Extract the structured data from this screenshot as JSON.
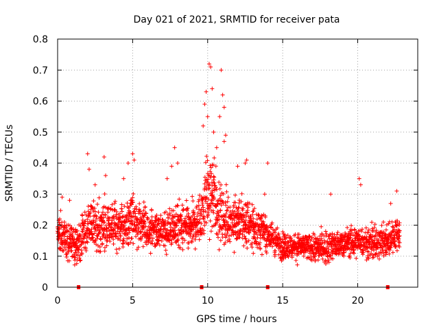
{
  "chart_data": {
    "type": "scatter",
    "title": "Day 021 of 2021, SRMTID for receiver pata",
    "xlabel": "GPS time / hours",
    "ylabel": "SRMTID / TECUs",
    "xlim": [
      0,
      24
    ],
    "ylim": [
      0,
      0.8
    ],
    "xticks": [
      0,
      5,
      10,
      15,
      20
    ],
    "xtick_labels": [
      "0",
      "5",
      "10",
      "15",
      "20"
    ],
    "yticks": [
      0,
      0.1,
      0.2,
      0.3,
      0.4,
      0.5,
      0.6,
      0.7,
      0.8
    ],
    "ytick_labels": [
      "0",
      "0.1",
      "0.2",
      "0.3",
      "0.4",
      "0.5",
      "0.6",
      "0.7",
      "0.8"
    ],
    "grid": true,
    "marker": "+",
    "color": "#ff0000",
    "data_gap_markers_x": [
      1.4,
      9.6,
      14.0,
      22.0
    ],
    "series": [
      {
        "name": "SRMTID",
        "profile": [
          {
            "x": 0.0,
            "mean": 0.18,
            "spread": 0.06
          },
          {
            "x": 0.5,
            "mean": 0.16,
            "spread": 0.06
          },
          {
            "x": 1.0,
            "mean": 0.14,
            "spread": 0.06
          },
          {
            "x": 1.5,
            "mean": 0.15,
            "spread": 0.06
          },
          {
            "x": 2.0,
            "mean": 0.2,
            "spread": 0.07
          },
          {
            "x": 3.0,
            "mean": 0.2,
            "spread": 0.07
          },
          {
            "x": 4.0,
            "mean": 0.19,
            "spread": 0.07
          },
          {
            "x": 5.0,
            "mean": 0.22,
            "spread": 0.08
          },
          {
            "x": 6.0,
            "mean": 0.19,
            "spread": 0.06
          },
          {
            "x": 7.0,
            "mean": 0.18,
            "spread": 0.06
          },
          {
            "x": 8.0,
            "mean": 0.2,
            "spread": 0.07
          },
          {
            "x": 9.0,
            "mean": 0.19,
            "spread": 0.07
          },
          {
            "x": 9.5,
            "mean": 0.22,
            "spread": 0.08
          },
          {
            "x": 10.0,
            "mean": 0.3,
            "spread": 0.12
          },
          {
            "x": 10.5,
            "mean": 0.28,
            "spread": 0.12
          },
          {
            "x": 11.0,
            "mean": 0.22,
            "spread": 0.08
          },
          {
            "x": 12.0,
            "mean": 0.21,
            "spread": 0.08
          },
          {
            "x": 13.0,
            "mean": 0.2,
            "spread": 0.07
          },
          {
            "x": 14.0,
            "mean": 0.17,
            "spread": 0.05
          },
          {
            "x": 15.0,
            "mean": 0.13,
            "spread": 0.04
          },
          {
            "x": 16.0,
            "mean": 0.13,
            "spread": 0.04
          },
          {
            "x": 17.0,
            "mean": 0.13,
            "spread": 0.04
          },
          {
            "x": 18.0,
            "mean": 0.13,
            "spread": 0.05
          },
          {
            "x": 19.0,
            "mean": 0.14,
            "spread": 0.04
          },
          {
            "x": 20.0,
            "mean": 0.15,
            "spread": 0.05
          },
          {
            "x": 21.0,
            "mean": 0.14,
            "spread": 0.05
          },
          {
            "x": 22.0,
            "mean": 0.15,
            "spread": 0.05
          },
          {
            "x": 22.8,
            "mean": 0.18,
            "spread": 0.06
          }
        ],
        "peaks": [
          {
            "x": 0.3,
            "y": 0.29
          },
          {
            "x": 0.8,
            "y": 0.28
          },
          {
            "x": 2.0,
            "y": 0.43
          },
          {
            "x": 2.1,
            "y": 0.38
          },
          {
            "x": 2.5,
            "y": 0.33
          },
          {
            "x": 3.1,
            "y": 0.42
          },
          {
            "x": 3.2,
            "y": 0.36
          },
          {
            "x": 4.4,
            "y": 0.35
          },
          {
            "x": 4.7,
            "y": 0.4
          },
          {
            "x": 5.0,
            "y": 0.43
          },
          {
            "x": 5.1,
            "y": 0.41
          },
          {
            "x": 7.3,
            "y": 0.35
          },
          {
            "x": 7.6,
            "y": 0.39
          },
          {
            "x": 7.8,
            "y": 0.45
          },
          {
            "x": 8.0,
            "y": 0.4
          },
          {
            "x": 9.7,
            "y": 0.52
          },
          {
            "x": 9.8,
            "y": 0.59
          },
          {
            "x": 9.9,
            "y": 0.63
          },
          {
            "x": 10.0,
            "y": 0.55
          },
          {
            "x": 10.1,
            "y": 0.72
          },
          {
            "x": 10.2,
            "y": 0.71
          },
          {
            "x": 10.3,
            "y": 0.64
          },
          {
            "x": 10.4,
            "y": 0.5
          },
          {
            "x": 10.6,
            "y": 0.45
          },
          {
            "x": 10.8,
            "y": 0.55
          },
          {
            "x": 10.9,
            "y": 0.7
          },
          {
            "x": 11.0,
            "y": 0.62
          },
          {
            "x": 11.1,
            "y": 0.58
          },
          {
            "x": 11.2,
            "y": 0.49
          },
          {
            "x": 11.1,
            "y": 0.47
          },
          {
            "x": 12.0,
            "y": 0.39
          },
          {
            "x": 12.5,
            "y": 0.4
          },
          {
            "x": 12.6,
            "y": 0.41
          },
          {
            "x": 14.0,
            "y": 0.4
          },
          {
            "x": 13.8,
            "y": 0.3
          },
          {
            "x": 18.2,
            "y": 0.3
          },
          {
            "x": 20.1,
            "y": 0.35
          },
          {
            "x": 20.2,
            "y": 0.33
          },
          {
            "x": 22.6,
            "y": 0.31
          },
          {
            "x": 22.2,
            "y": 0.27
          }
        ]
      }
    ]
  }
}
